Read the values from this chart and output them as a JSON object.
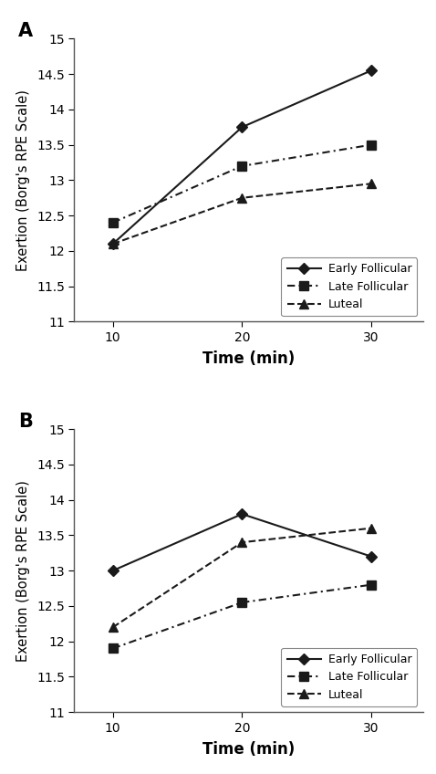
{
  "panel_A": {
    "label": "A",
    "time": [
      10,
      20,
      30
    ],
    "early_follicular": [
      12.1,
      13.75,
      14.55
    ],
    "late_follicular": [
      12.4,
      13.2,
      13.5
    ],
    "luteal": [
      12.1,
      12.75,
      12.95
    ],
    "ylim": [
      11,
      15
    ],
    "yticks": [
      11,
      11.5,
      12,
      12.5,
      13,
      13.5,
      14,
      14.5,
      15
    ]
  },
  "panel_B": {
    "label": "B",
    "time": [
      10,
      20,
      30
    ],
    "early_follicular": [
      13.0,
      13.8,
      13.2
    ],
    "late_follicular": [
      11.9,
      12.55,
      12.8
    ],
    "luteal": [
      12.2,
      13.4,
      13.6
    ],
    "ylim": [
      11,
      15
    ],
    "yticks": [
      11,
      11.5,
      12,
      12.5,
      13,
      13.5,
      14,
      14.5,
      15
    ]
  },
  "xlabel": "Time (min)",
  "ylabel": "Exertion (Borg's RPE Scale)",
  "xticks": [
    10,
    20,
    30
  ],
  "legend_labels": [
    "Early Follicular",
    "Late Follicular",
    "Luteal"
  ],
  "background_color": "#ffffff",
  "line_color": "#1a1a1a",
  "xlim": [
    7,
    34
  ]
}
